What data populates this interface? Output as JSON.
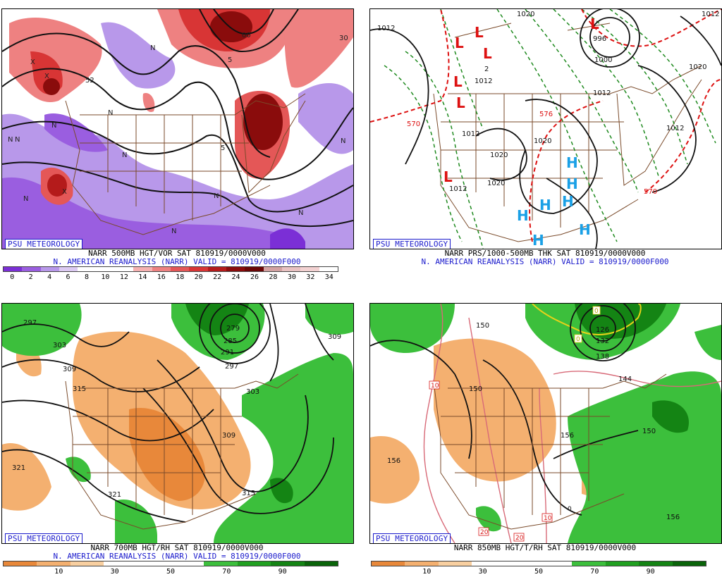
{
  "panels": {
    "tl": {
      "badge": "PSU METEOROLOGY",
      "line1": "NARR 500MB HGT/VOR SAT 810919/0000V000",
      "line2": "N. AMERICAN REANALYSIS (NARR) VALID = 810919/0000F000",
      "ticks": [
        "0",
        "2",
        "4",
        "6",
        "8",
        "10",
        "12",
        "14",
        "16",
        "18",
        "20",
        "22",
        "24",
        "26",
        "28",
        "30",
        "32",
        "34"
      ],
      "colorbar": [
        "#7b2fd6",
        "#9a5ee0",
        "#b898ea",
        "#dccaf2",
        "#ffffff",
        "#ffffff",
        "#ffffff",
        "#f6b1b1",
        "#ee8181",
        "#e45757",
        "#d83535",
        "#b41b1b",
        "#8a0c0c",
        "#6a0606",
        "#d3a2a2",
        "#e9c2c2",
        "#f3d2d2",
        "#ffffff"
      ],
      "map_labels": [
        "X",
        "N",
        "N",
        "N",
        "N",
        "N",
        "N",
        "N",
        "N",
        "N",
        "N",
        "N",
        "X",
        "X",
        "5",
        "5",
        "00",
        "30",
        "52"
      ]
    },
    "tr": {
      "badge": "PSU METEOROLOGY",
      "line1": "NARR PRS/1000-500MB THK SAT 810919/0000V000",
      "line2": "N. AMERICAN REANALYSIS (NARR) VALID = 810919/0000F000",
      "low_marks": [
        "L",
        "L",
        "L",
        "L",
        "L",
        "L",
        "L"
      ],
      "high_marks": [
        "H",
        "H",
        "H",
        "H",
        "H",
        "H",
        "H"
      ],
      "isobar_labels": [
        "1012",
        "1020",
        "1012",
        "1012",
        "1012",
        "1020",
        "1020",
        "1012",
        "1020",
        "1012",
        "1020",
        "1000",
        "996",
        "1020",
        "1012",
        "2"
      ],
      "thickness_labels": [
        "570",
        "576",
        "570"
      ]
    },
    "bl": {
      "badge": "PSU METEOROLOGY",
      "line1": "NARR 700MB HGT/RH SAT 810919/0000V000",
      "line2": "N. AMERICAN REANALYSIS (NARR) VALID = 810919/0000F000",
      "ticks": [
        "10",
        "30",
        "50",
        "70",
        "90"
      ],
      "colorbar": [
        "#e8883a",
        "#f4b070",
        "#f8cfa0",
        "#ffffff",
        "#ffffff",
        "#ffffff",
        "#3cbf3c",
        "#20a020",
        "#148414",
        "#0a640a"
      ],
      "map_labels": [
        "297",
        "303",
        "309",
        "315",
        "279",
        "285",
        "291",
        "297",
        "303",
        "309",
        "309",
        "321",
        "321",
        "315"
      ]
    },
    "br": {
      "badge": "PSU METEOROLOGY",
      "line1": "NARR 850MB HGT/T/RH SAT 810919/0000V000",
      "line2": "",
      "ticks": [
        "10",
        "30",
        "50",
        "70",
        "90"
      ],
      "colorbar": [
        "#e8883a",
        "#f4b070",
        "#f8cfa0",
        "#ffffff",
        "#ffffff",
        "#ffffff",
        "#3cbf3c",
        "#20a020",
        "#148414",
        "#0a640a"
      ],
      "map_labels": [
        "150",
        "156",
        "150",
        "156",
        "156",
        "138",
        "132",
        "126",
        "144",
        "150",
        "10",
        "10",
        "20",
        "20",
        "0",
        "0",
        "0"
      ]
    }
  },
  "colors": {
    "brand_blue": "#1a1acc",
    "borders": "#7a4a2a",
    "contour": "#111111",
    "low_red": "#dd1111",
    "high_cyan": "#1aa0e6",
    "thickness_green": "#1f8a1f",
    "thickness_red": "#dd1111"
  }
}
